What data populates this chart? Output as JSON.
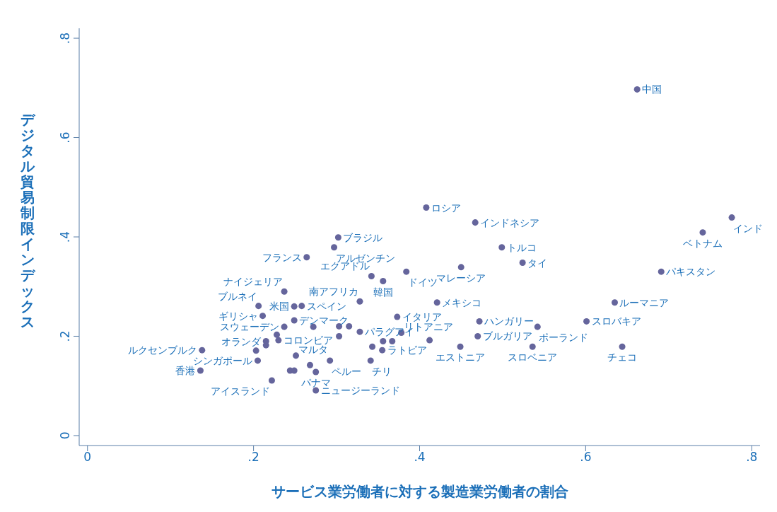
{
  "chart_data": {
    "type": "scatter",
    "xlabel": "サービス業労働者に対する製造業労働者の割合",
    "ylabel": "デジタル貿易制限インデックス",
    "xlim": [
      -0.01,
      0.81
    ],
    "ylim": [
      -0.02,
      0.82
    ],
    "xticks": [
      0,
      {
        "value": 0.2,
        "label": ".2"
      },
      {
        "value": 0.4,
        "label": ".4"
      },
      {
        "value": 0.6,
        "label": ".6"
      },
      {
        "value": 0.8,
        "label": ".8"
      }
    ],
    "yticks": [
      0,
      {
        "value": 0.2,
        "label": ".2"
      },
      {
        "value": 0.4,
        "label": ".4"
      },
      {
        "value": 0.6,
        "label": ".6"
      },
      {
        "value": 0.8,
        "label": ".8"
      }
    ],
    "grid": false,
    "legend": false,
    "marker": "circle",
    "series": [
      {
        "color": "#65659c",
        "x": [
          0.662,
          0.408,
          0.467,
          0.499,
          0.524,
          0.45,
          0.776,
          0.741,
          0.691,
          0.635,
          0.601,
          0.472,
          0.542,
          0.47,
          0.536,
          0.644,
          0.449,
          0.421,
          0.302,
          0.297,
          0.264,
          0.342,
          0.356,
          0.384,
          0.237,
          0.328,
          0.206,
          0.249,
          0.258,
          0.211,
          0.249,
          0.237,
          0.23,
          0.215,
          0.138,
          0.136,
          0.205,
          0.222,
          0.251,
          0.292,
          0.275,
          0.275,
          0.341,
          0.355,
          0.378,
          0.373,
          0.328,
          0.272,
          0.228,
          0.215,
          0.203,
          0.244,
          0.249,
          0.268,
          0.303,
          0.315,
          0.303,
          0.356,
          0.367,
          0.343,
          0.412
        ],
        "values": [
          0.697,
          0.459,
          0.429,
          0.379,
          0.348,
          0.339,
          0.439,
          0.409,
          0.33,
          0.268,
          0.23,
          0.23,
          0.219,
          0.2,
          0.179,
          0.179,
          0.179,
          0.268,
          0.399,
          0.379,
          0.359,
          0.321,
          0.311,
          0.33,
          0.29,
          0.27,
          0.261,
          0.26,
          0.261,
          0.241,
          0.232,
          0.219,
          0.192,
          0.19,
          0.172,
          0.131,
          0.151,
          0.111,
          0.161,
          0.151,
          0.128,
          0.091,
          0.151,
          0.172,
          0.207,
          0.239,
          0.209,
          0.219,
          0.203,
          0.182,
          0.171,
          0.131,
          0.131,
          0.142,
          0.22,
          0.22,
          0.2,
          0.19,
          0.19,
          0.179,
          0.192
        ]
      }
    ],
    "annotations": [
      {
        "text": "中国",
        "x": 0.662,
        "y": 0.697
      },
      {
        "text": "ロシア",
        "x": 0.408,
        "y": 0.459
      },
      {
        "text": "インドネシア",
        "x": 0.467,
        "y": 0.429
      },
      {
        "text": "トルコ",
        "x": 0.499,
        "y": 0.379
      },
      {
        "text": "タイ",
        "x": 0.524,
        "y": 0.348
      },
      {
        "text": "マレーシア",
        "x": 0.45,
        "y": 0.339
      },
      {
        "text": "インド",
        "x": 0.776,
        "y": 0.439
      },
      {
        "text": "ベトナム",
        "x": 0.741,
        "y": 0.409
      },
      {
        "text": "パキスタン",
        "x": 0.691,
        "y": 0.33
      },
      {
        "text": "ルーマニア",
        "x": 0.635,
        "y": 0.268
      },
      {
        "text": "スロバキア",
        "x": 0.601,
        "y": 0.23
      },
      {
        "text": "ハンガリー",
        "x": 0.472,
        "y": 0.23
      },
      {
        "text": "ポーランド",
        "x": 0.542,
        "y": 0.219
      },
      {
        "text": "ブルガリア",
        "x": 0.47,
        "y": 0.2
      },
      {
        "text": "スロベニア",
        "x": 0.536,
        "y": 0.179
      },
      {
        "text": "チェコ",
        "x": 0.644,
        "y": 0.179
      },
      {
        "text": "エストニア",
        "x": 0.449,
        "y": 0.179
      },
      {
        "text": "メキシコ",
        "x": 0.421,
        "y": 0.268
      },
      {
        "text": "ブラジル",
        "x": 0.302,
        "y": 0.399
      },
      {
        "text": "アルゼンチン",
        "x": 0.297,
        "y": 0.379
      },
      {
        "text": "フランス",
        "x": 0.264,
        "y": 0.359
      },
      {
        "text": "エクアドル",
        "x": 0.342,
        "y": 0.321
      },
      {
        "text": "韓国",
        "x": 0.356,
        "y": 0.311
      },
      {
        "text": "ドイツ",
        "x": 0.384,
        "y": 0.33
      },
      {
        "text": "ナイジェリア",
        "x": 0.237,
        "y": 0.29
      },
      {
        "text": "南アフリカ",
        "x": 0.328,
        "y": 0.27
      },
      {
        "text": "ブルネイ",
        "x": 0.206,
        "y": 0.261
      },
      {
        "text": "米国",
        "x": 0.249,
        "y": 0.26
      },
      {
        "text": "スペイン",
        "x": 0.258,
        "y": 0.261
      },
      {
        "text": "ギリシャ",
        "x": 0.211,
        "y": 0.241
      },
      {
        "text": "デンマーク",
        "x": 0.249,
        "y": 0.232
      },
      {
        "text": "スウェーデン",
        "x": 0.237,
        "y": 0.219
      },
      {
        "text": "コロンビア",
        "x": 0.23,
        "y": 0.192
      },
      {
        "text": "オランダ",
        "x": 0.215,
        "y": 0.19
      },
      {
        "text": "ルクセンブルク",
        "x": 0.138,
        "y": 0.172
      },
      {
        "text": "香港",
        "x": 0.136,
        "y": 0.131
      },
      {
        "text": "シンガポール",
        "x": 0.205,
        "y": 0.151
      },
      {
        "text": "アイスランド",
        "x": 0.222,
        "y": 0.111
      },
      {
        "text": "マルタ",
        "x": 0.251,
        "y": 0.161
      },
      {
        "text": "ペルー",
        "x": 0.292,
        "y": 0.151
      },
      {
        "text": "パナマ",
        "x": 0.275,
        "y": 0.128
      },
      {
        "text": "ニュージーランド",
        "x": 0.275,
        "y": 0.091
      },
      {
        "text": "チリ",
        "x": 0.341,
        "y": 0.151
      },
      {
        "text": "ラトビア",
        "x": 0.355,
        "y": 0.172
      },
      {
        "text": "リトアニア",
        "x": 0.378,
        "y": 0.207
      },
      {
        "text": "イタリア",
        "x": 0.373,
        "y": 0.239
      },
      {
        "text": "パラグアイ",
        "x": 0.328,
        "y": 0.209
      }
    ]
  }
}
